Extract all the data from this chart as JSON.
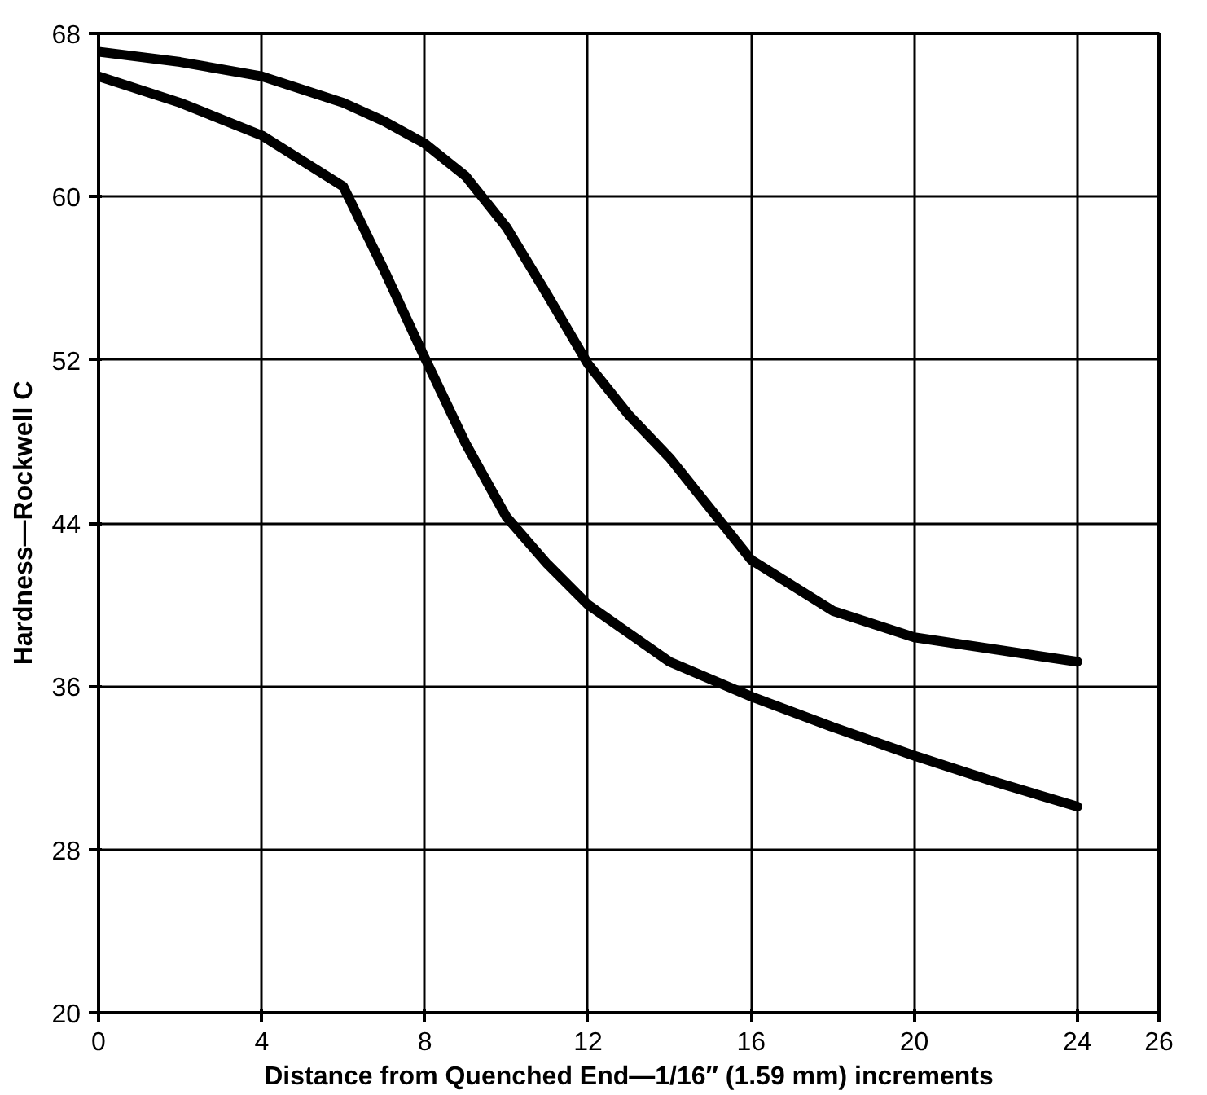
{
  "chart_data": {
    "type": "line",
    "xlabel": "Distance from Quenched End—1/16″ (1.59 mm) increments",
    "ylabel": "Hardness—Rockwell C",
    "xlim": [
      0,
      26
    ],
    "ylim": [
      20,
      68
    ],
    "xticks": [
      0,
      4,
      8,
      12,
      16,
      20,
      24,
      26
    ],
    "yticks": [
      20,
      28,
      36,
      44,
      52,
      60,
      68
    ],
    "grid": true,
    "series": [
      {
        "color": "#000000",
        "x": [
          0,
          2,
          4,
          6,
          7,
          8,
          9,
          10,
          11,
          12,
          13,
          14,
          16,
          18,
          20,
          22,
          24
        ],
        "values": [
          67.1,
          66.6,
          65.9,
          64.6,
          63.7,
          62.6,
          61,
          58.5,
          55.2,
          51.8,
          49.3,
          47.2,
          42.2,
          39.7,
          38.4,
          37.8,
          37.2
        ]
      },
      {
        "color": "#000000",
        "x": [
          0,
          2,
          4,
          6,
          7,
          8,
          9,
          10,
          11,
          12,
          14,
          16,
          18,
          20,
          22,
          24
        ],
        "values": [
          65.9,
          64.6,
          63,
          60.5,
          56.4,
          52.1,
          47.9,
          44.3,
          42,
          40,
          37.2,
          35.5,
          34,
          32.6,
          31.3,
          30.1
        ]
      }
    ]
  }
}
